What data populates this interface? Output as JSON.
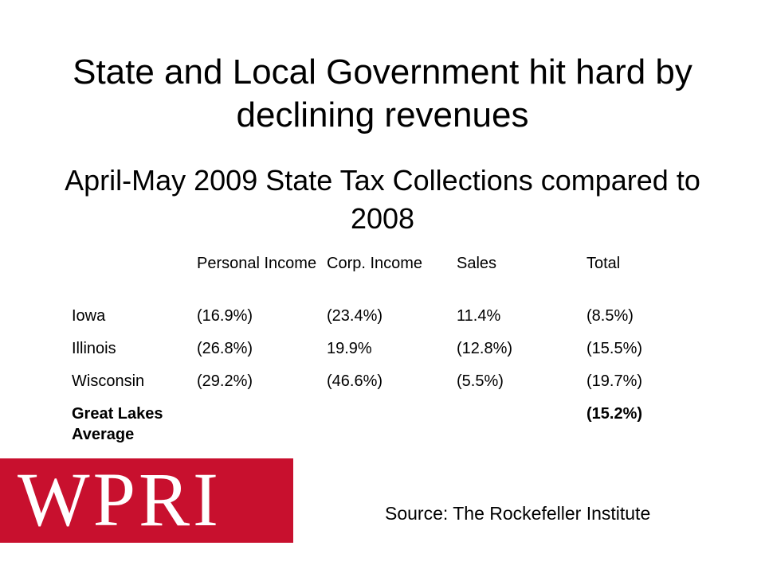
{
  "slide": {
    "title": "State and Local Government hit hard by declining revenues",
    "subtitle": "April-May 2009 State Tax Collections compared to 2008",
    "source": "Source: The Rockefeller Institute"
  },
  "logo": {
    "text": "WPRI",
    "color": "#c8102e"
  },
  "table": {
    "headers": [
      "",
      "Personal Income",
      "Corp. Income",
      "Sales",
      "Total"
    ],
    "rows": [
      [
        "Iowa",
        "(16.9%)",
        "(23.4%)",
        "11.4%",
        "(8.5%)"
      ],
      [
        "Illinois",
        "(26.8%)",
        "19.9%",
        "(12.8%)",
        "(15.5%)"
      ],
      [
        "Wisconsin",
        "(29.2%)",
        "(46.6%)",
        "(5.5%)",
        "(19.7%)"
      ],
      [
        "Great Lakes Average",
        "",
        "",
        "",
        "(15.2%)"
      ]
    ]
  }
}
